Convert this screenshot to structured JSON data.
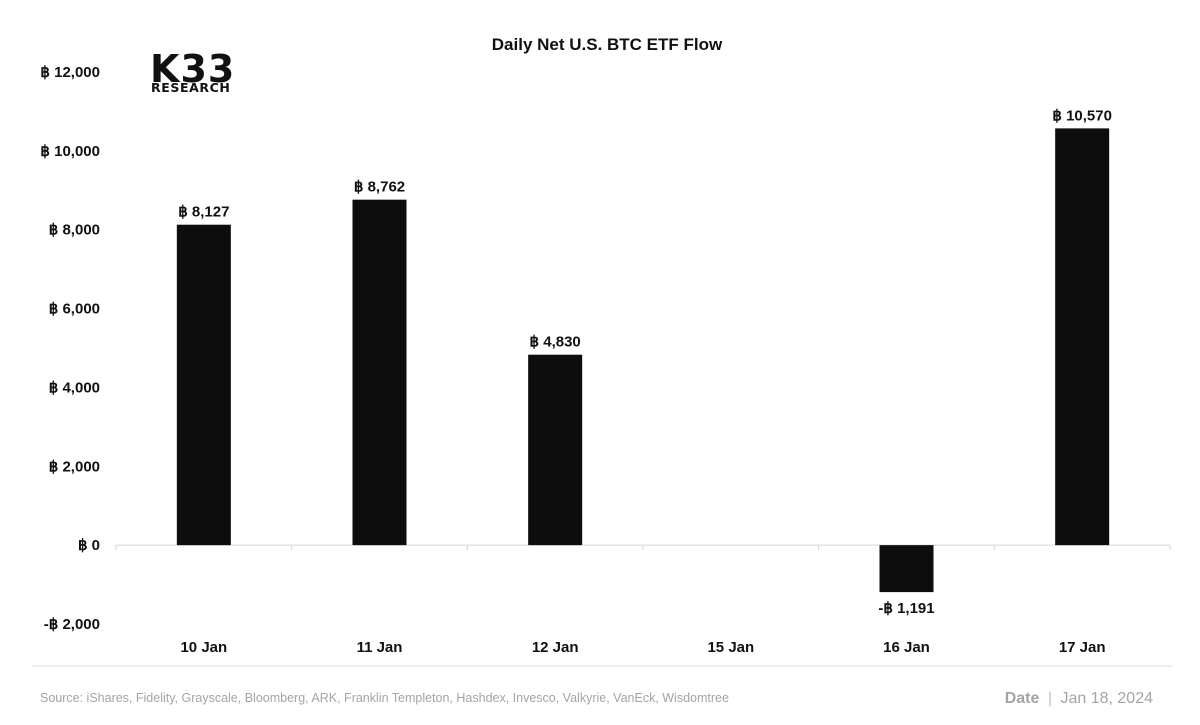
{
  "chart_data": {
    "type": "bar",
    "title": "Daily Net U.S. BTC ETF Flow",
    "categories": [
      "10 Jan",
      "11 Jan",
      "12 Jan",
      "15 Jan",
      "16 Jan",
      "17 Jan"
    ],
    "values": [
      8127,
      8762,
      4830,
      null,
      -1191,
      10570
    ],
    "data_labels": [
      "฿ 8,127",
      "฿ 8,762",
      "฿ 4,830",
      "",
      "-฿ 1,191",
      "฿ 10,570"
    ],
    "yticks": [
      -2000,
      0,
      2000,
      4000,
      6000,
      8000,
      10000,
      12000
    ],
    "ytick_labels": [
      "-฿ 2,000",
      "฿ 0",
      "฿ 2,000",
      "฿ 4,000",
      "฿ 6,000",
      "฿ 8,000",
      "฿ 10,000",
      "฿ 12,000"
    ],
    "ylim": [
      -2000,
      12000
    ],
    "xlabel": "",
    "ylabel": "",
    "grid": false,
    "bar_color": "#0d0d0d"
  },
  "logo": {
    "name": "K33",
    "tagline": "RESEARCH"
  },
  "footer": {
    "source": "Source:  iShares, Fidelity, Grayscale, Bloomberg, ARK, Franklin Templeton, Hashdex, Invesco, Valkyrie, VanEck, Wisdomtree",
    "date_label": "Date",
    "date_separator": "|",
    "date_value": "Jan 18, 2024"
  }
}
